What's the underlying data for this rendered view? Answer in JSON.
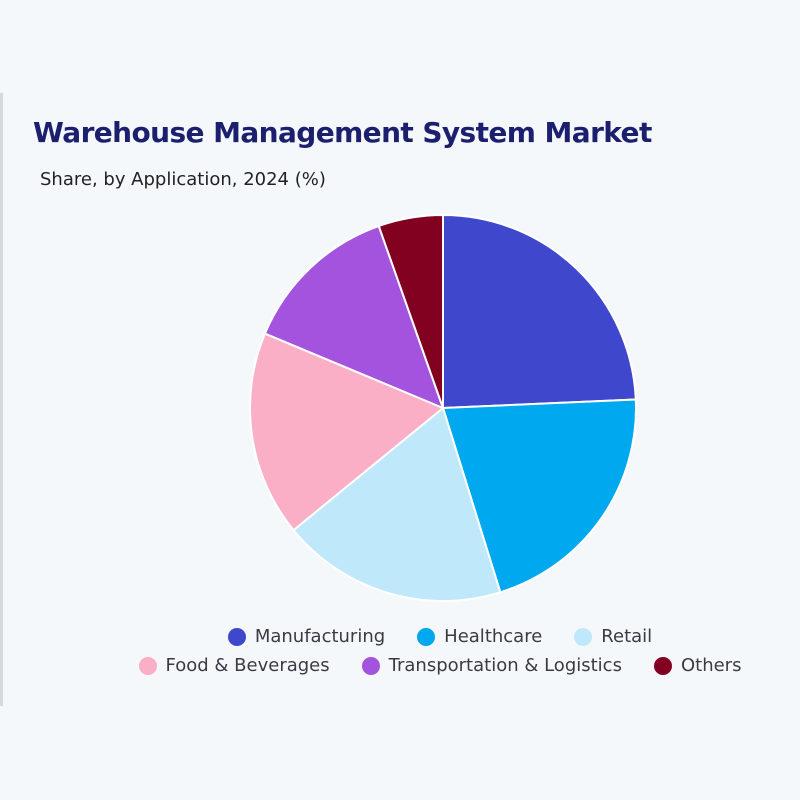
{
  "chart_data": {
    "type": "pie",
    "title": "Warehouse Management System Market",
    "subtitle": "Share, by Application, 2024 (%)",
    "categories": [
      "Manufacturing",
      "Healthcare",
      "Retail",
      "Food & Beverages",
      "Transportation & Logistics",
      "Others"
    ],
    "values": [
      24.3,
      20.9,
      18.9,
      17.2,
      13.3,
      5.4
    ],
    "colors": [
      "#3F48CC",
      "#00A8F0",
      "#BFE8FA",
      "#FBAFC7",
      "#A353DD",
      "#820020"
    ],
    "start_angle_deg": 0,
    "direction": "clockwise",
    "legend_position": "bottom",
    "data_labels": false
  },
  "header": {
    "title": "Warehouse Management System Market",
    "subtitle": "Share, by Application, 2024 (%)"
  },
  "legend": {
    "rows": [
      [
        {
          "label": "Manufacturing",
          "color": "#3F48CC"
        },
        {
          "label": "Healthcare",
          "color": "#00A8F0"
        },
        {
          "label": "Retail",
          "color": "#BFE8FA"
        }
      ],
      [
        {
          "label": "Food & Beverages",
          "color": "#FBAFC7"
        },
        {
          "label": "Transportation & Logistics",
          "color": "#A353DD"
        },
        {
          "label": "Others",
          "color": "#820020"
        }
      ]
    ]
  }
}
